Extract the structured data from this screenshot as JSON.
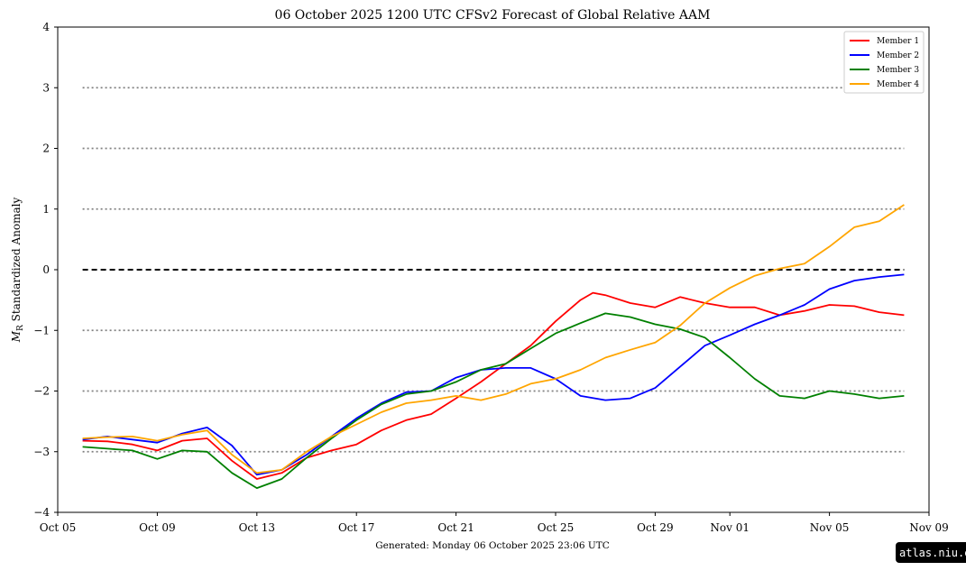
{
  "chart_data": {
    "type": "line",
    "title": "06  October  2025 1200 UTC   CFSv2 Forecast of Global Relative AAM",
    "ylabel_symbol": "M",
    "ylabel_subscript": "R",
    "ylabel_text": " Standardized Anomaly",
    "xlabel": "",
    "xlim": [
      "2025-10-05",
      "2025-11-09"
    ],
    "ylim": [
      -4,
      4
    ],
    "y_ticks": [
      -4,
      -3,
      -2,
      -1,
      0,
      1,
      2,
      3,
      4
    ],
    "y_tick_labels": [
      "−4",
      "−3",
      "−2",
      "−1",
      "0",
      "1",
      "2",
      "3",
      "4"
    ],
    "x_ticks": [
      "2025-10-05",
      "2025-10-09",
      "2025-10-13",
      "2025-10-17",
      "2025-10-21",
      "2025-10-25",
      "2025-10-29",
      "2025-11-01",
      "2025-11-05",
      "2025-11-09"
    ],
    "x_tick_labels": [
      "Oct 05",
      "Oct 09",
      "Oct 13",
      "Oct 17",
      "Oct 21",
      "Oct 25",
      "Oct 29",
      "Nov 01",
      "Nov 05",
      "Nov 09"
    ],
    "reference_lines": {
      "dotted": [
        -3,
        -2,
        -1,
        1,
        2,
        3
      ],
      "dashed": [
        0
      ],
      "dotted_color": "#808080",
      "dashed_color": "#000000",
      "x_range": [
        "2025-10-06",
        "2025-11-08"
      ]
    },
    "legend_position": "top-right",
    "series": [
      {
        "name": "Member 1",
        "color": "#ff0000",
        "points": [
          [
            "2025-10-06",
            -2.82
          ],
          [
            "2025-10-07",
            -2.83
          ],
          [
            "2025-10-08",
            -2.88
          ],
          [
            "2025-10-09",
            -2.98
          ],
          [
            "2025-10-10",
            -2.82
          ],
          [
            "2025-10-11",
            -2.78
          ],
          [
            "2025-10-12",
            -3.15
          ],
          [
            "2025-10-13",
            -3.45
          ],
          [
            "2025-10-14",
            -3.35
          ],
          [
            "2025-10-15",
            -3.1
          ],
          [
            "2025-10-16",
            -2.98
          ],
          [
            "2025-10-17",
            -2.88
          ],
          [
            "2025-10-18",
            -2.65
          ],
          [
            "2025-10-19",
            -2.48
          ],
          [
            "2025-10-20",
            -2.38
          ],
          [
            "2025-10-21",
            -2.12
          ],
          [
            "2025-10-22",
            -1.85
          ],
          [
            "2025-10-23",
            -1.55
          ],
          [
            "2025-10-24",
            -1.25
          ],
          [
            "2025-10-25",
            -0.85
          ],
          [
            "2025-10-26",
            -0.5
          ],
          [
            "2025-10-26T12:00",
            -0.38
          ],
          [
            "2025-10-27",
            -0.42
          ],
          [
            "2025-10-28",
            -0.55
          ],
          [
            "2025-10-29",
            -0.62
          ],
          [
            "2025-10-30",
            -0.45
          ],
          [
            "2025-10-31",
            -0.55
          ],
          [
            "2025-11-01",
            -0.62
          ],
          [
            "2025-11-02",
            -0.62
          ],
          [
            "2025-11-03",
            -0.75
          ],
          [
            "2025-11-04",
            -0.68
          ],
          [
            "2025-11-05",
            -0.58
          ],
          [
            "2025-11-06",
            -0.6
          ],
          [
            "2025-11-07",
            -0.7
          ],
          [
            "2025-11-08",
            -0.75
          ]
        ]
      },
      {
        "name": "Member 2",
        "color": "#0000ff",
        "points": [
          [
            "2025-10-06",
            -2.8
          ],
          [
            "2025-10-07",
            -2.75
          ],
          [
            "2025-10-08",
            -2.8
          ],
          [
            "2025-10-09",
            -2.85
          ],
          [
            "2025-10-10",
            -2.7
          ],
          [
            "2025-10-11",
            -2.6
          ],
          [
            "2025-10-12",
            -2.9
          ],
          [
            "2025-10-13",
            -3.38
          ],
          [
            "2025-10-14",
            -3.3
          ],
          [
            "2025-10-15",
            -3.05
          ],
          [
            "2025-10-16",
            -2.75
          ],
          [
            "2025-10-17",
            -2.45
          ],
          [
            "2025-10-18",
            -2.2
          ],
          [
            "2025-10-19",
            -2.02
          ],
          [
            "2025-10-20",
            -2.0
          ],
          [
            "2025-10-21",
            -1.78
          ],
          [
            "2025-10-22",
            -1.65
          ],
          [
            "2025-10-23",
            -1.62
          ],
          [
            "2025-10-24",
            -1.62
          ],
          [
            "2025-10-25",
            -1.8
          ],
          [
            "2025-10-26",
            -2.08
          ],
          [
            "2025-10-27",
            -2.15
          ],
          [
            "2025-10-28",
            -2.12
          ],
          [
            "2025-10-29",
            -1.95
          ],
          [
            "2025-10-30",
            -1.6
          ],
          [
            "2025-10-31",
            -1.25
          ],
          [
            "2025-11-01",
            -1.08
          ],
          [
            "2025-11-02",
            -0.9
          ],
          [
            "2025-11-03",
            -0.75
          ],
          [
            "2025-11-04",
            -0.58
          ],
          [
            "2025-11-05",
            -0.32
          ],
          [
            "2025-11-06",
            -0.18
          ],
          [
            "2025-11-07",
            -0.12
          ],
          [
            "2025-11-08",
            -0.08
          ]
        ]
      },
      {
        "name": "Member 3",
        "color": "#008000",
        "points": [
          [
            "2025-10-06",
            -2.92
          ],
          [
            "2025-10-07",
            -2.95
          ],
          [
            "2025-10-08",
            -2.98
          ],
          [
            "2025-10-09",
            -3.12
          ],
          [
            "2025-10-10",
            -2.98
          ],
          [
            "2025-10-11",
            -3.0
          ],
          [
            "2025-10-12",
            -3.35
          ],
          [
            "2025-10-13",
            -3.6
          ],
          [
            "2025-10-14",
            -3.45
          ],
          [
            "2025-10-15",
            -3.1
          ],
          [
            "2025-10-16",
            -2.78
          ],
          [
            "2025-10-17",
            -2.48
          ],
          [
            "2025-10-18",
            -2.22
          ],
          [
            "2025-10-19",
            -2.05
          ],
          [
            "2025-10-20",
            -2.0
          ],
          [
            "2025-10-21",
            -1.85
          ],
          [
            "2025-10-22",
            -1.65
          ],
          [
            "2025-10-23",
            -1.55
          ],
          [
            "2025-10-24",
            -1.3
          ],
          [
            "2025-10-25",
            -1.05
          ],
          [
            "2025-10-26",
            -0.88
          ],
          [
            "2025-10-27",
            -0.72
          ],
          [
            "2025-10-28",
            -0.78
          ],
          [
            "2025-10-29",
            -0.9
          ],
          [
            "2025-10-30",
            -0.98
          ],
          [
            "2025-10-31",
            -1.12
          ],
          [
            "2025-11-01",
            -1.45
          ],
          [
            "2025-11-02",
            -1.8
          ],
          [
            "2025-11-03",
            -2.08
          ],
          [
            "2025-11-04",
            -2.12
          ],
          [
            "2025-11-05",
            -2.0
          ],
          [
            "2025-11-06",
            -2.05
          ],
          [
            "2025-11-07",
            -2.12
          ],
          [
            "2025-11-08",
            -2.08
          ]
        ]
      },
      {
        "name": "Member 4",
        "color": "#ffa500",
        "points": [
          [
            "2025-10-06",
            -2.78
          ],
          [
            "2025-10-07",
            -2.76
          ],
          [
            "2025-10-08",
            -2.75
          ],
          [
            "2025-10-09",
            -2.82
          ],
          [
            "2025-10-10",
            -2.72
          ],
          [
            "2025-10-11",
            -2.65
          ],
          [
            "2025-10-12",
            -3.05
          ],
          [
            "2025-10-13",
            -3.35
          ],
          [
            "2025-10-14",
            -3.3
          ],
          [
            "2025-10-15",
            -3.0
          ],
          [
            "2025-10-16",
            -2.75
          ],
          [
            "2025-10-17",
            -2.55
          ],
          [
            "2025-10-18",
            -2.35
          ],
          [
            "2025-10-19",
            -2.2
          ],
          [
            "2025-10-20",
            -2.15
          ],
          [
            "2025-10-21",
            -2.08
          ],
          [
            "2025-10-22",
            -2.15
          ],
          [
            "2025-10-23",
            -2.05
          ],
          [
            "2025-10-24",
            -1.88
          ],
          [
            "2025-10-25",
            -1.8
          ],
          [
            "2025-10-26",
            -1.65
          ],
          [
            "2025-10-27",
            -1.45
          ],
          [
            "2025-10-28",
            -1.32
          ],
          [
            "2025-10-29",
            -1.2
          ],
          [
            "2025-10-30",
            -0.92
          ],
          [
            "2025-10-31",
            -0.55
          ],
          [
            "2025-11-01",
            -0.3
          ],
          [
            "2025-11-02",
            -0.1
          ],
          [
            "2025-11-03",
            0.02
          ],
          [
            "2025-11-04",
            0.1
          ],
          [
            "2025-11-05",
            0.38
          ],
          [
            "2025-11-06",
            0.7
          ],
          [
            "2025-11-07",
            0.8
          ],
          [
            "2025-11-08",
            1.07
          ]
        ]
      }
    ]
  },
  "footer": {
    "generated": "Generated: Monday  06  October  2025  23:06 UTC"
  },
  "badge": {
    "text": "atlas.niu.edu",
    "background": "#000000"
  }
}
